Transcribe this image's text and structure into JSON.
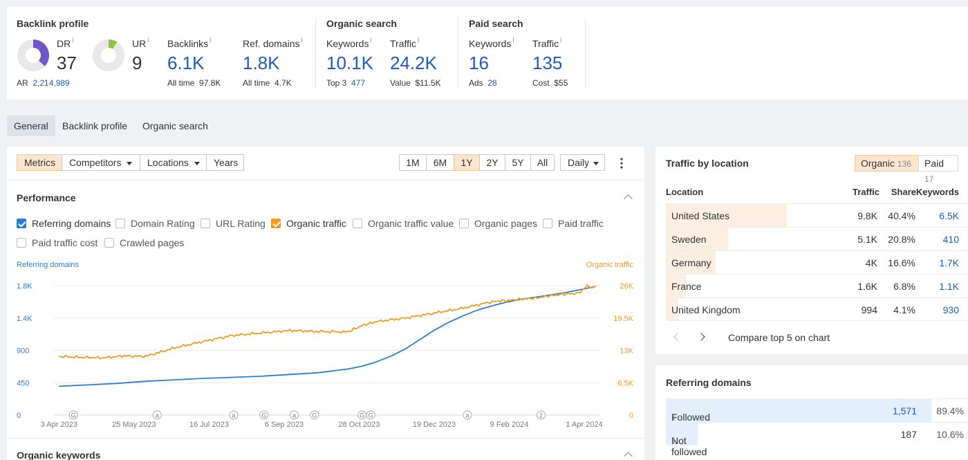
{
  "backlink_profile": {
    "title": "Backlink profile",
    "dr": {
      "label": "DR",
      "value": "37",
      "fraction": 0.37
    },
    "ur": {
      "label": "UR",
      "value": "9",
      "fraction": 0.09
    },
    "ar": {
      "label": "AR",
      "value": "2,214,989"
    },
    "backlinks": {
      "label": "Backlinks",
      "value": "6.1K",
      "sub_label": "All time",
      "sub_value": "97.8K"
    },
    "ref_domains": {
      "label": "Ref. domains",
      "value": "1.8K",
      "sub_label": "All time",
      "sub_value": "4.7K"
    }
  },
  "organic_search": {
    "title": "Organic search",
    "keywords": {
      "label": "Keywords",
      "value": "10.1K",
      "sub_label": "Top 3",
      "sub_value": "477"
    },
    "traffic": {
      "label": "Traffic",
      "value": "24.2K",
      "sub_label": "Value",
      "sub_value": "$11.5K"
    }
  },
  "paid_search": {
    "title": "Paid search",
    "keywords": {
      "label": "Keywords",
      "value": "16",
      "sub_label": "Ads",
      "sub_value": "28"
    },
    "traffic": {
      "label": "Traffic",
      "value": "135",
      "sub_label": "Cost",
      "sub_value": "$55"
    }
  },
  "info_mark": "i",
  "tabs": [
    "General",
    "Backlink profile",
    "Organic search"
  ],
  "toolbar": {
    "metrics": "Metrics",
    "competitors": "Competitors",
    "locations": "Locations",
    "years": "Years",
    "ranges": [
      "1M",
      "6M",
      "1Y",
      "2Y",
      "5Y",
      "All"
    ],
    "active_range": "1Y",
    "interval": "Daily"
  },
  "performance": {
    "title": "Performance",
    "checkboxes": [
      {
        "label": "Referring domains",
        "checked": true
      },
      {
        "label": "Domain Rating",
        "checked": false
      },
      {
        "label": "URL Rating",
        "checked": false
      },
      {
        "label": "Organic traffic",
        "checked": true
      },
      {
        "label": "Organic traffic value",
        "checked": false
      },
      {
        "label": "Organic pages",
        "checked": false
      },
      {
        "label": "Paid traffic",
        "checked": false
      },
      {
        "label": "Paid traffic cost",
        "checked": false
      },
      {
        "label": "Crawled pages",
        "checked": false
      }
    ]
  },
  "chart_data": {
    "type": "line",
    "left_axis_label": "Referring domains",
    "right_axis_label": "Organic traffic",
    "left_ticks": [
      "0",
      "450",
      "900",
      "1.4K",
      "1.8K"
    ],
    "right_ticks": [
      "0",
      "6.5K",
      "13K",
      "19.5K",
      "26K"
    ],
    "left_ylim": [
      0,
      1800
    ],
    "right_ylim": [
      0,
      26000
    ],
    "x_ticks": [
      "3 Apr 2023",
      "25 May 2023",
      "16 Jul 2023",
      "6 Sep 2023",
      "28 Oct 2023",
      "19 Dec 2023",
      "9 Feb 2024",
      "1 Apr 2024"
    ],
    "x_tick_days": [
      0,
      52,
      104,
      156,
      208,
      260,
      312,
      364
    ],
    "x_range_days": [
      -4,
      375
    ],
    "annotations": [
      "G",
      "a",
      "a",
      "G",
      "a",
      "G",
      "G",
      "G",
      "a",
      "2"
    ],
    "annotation_days": [
      10,
      68,
      121,
      142,
      163,
      177,
      210,
      216,
      283,
      334
    ],
    "series": [
      {
        "name": "Referring domains",
        "color": "#2b7cd3",
        "x": [
          0,
          20,
          40,
          60,
          80,
          100,
          120,
          140,
          160,
          180,
          200,
          210,
          220,
          230,
          240,
          250,
          260,
          270,
          280,
          290,
          300,
          310,
          320,
          330,
          340,
          350,
          360,
          372
        ],
        "y": [
          400,
          420,
          440,
          470,
          490,
          510,
          525,
          540,
          565,
          590,
          640,
          680,
          740,
          820,
          920,
          1050,
          1180,
          1290,
          1380,
          1460,
          1520,
          1570,
          1610,
          1640,
          1670,
          1700,
          1740,
          1790
        ]
      },
      {
        "name": "Organic traffic",
        "color": "#f39a1e",
        "x": [
          0,
          15,
          30,
          45,
          60,
          80,
          100,
          120,
          140,
          160,
          180,
          200,
          210,
          220,
          240,
          260,
          280,
          300,
          310,
          320,
          330,
          340,
          350,
          360,
          366,
          368,
          372
        ],
        "y": [
          11800,
          11600,
          11500,
          11900,
          11800,
          13500,
          14800,
          16000,
          16500,
          17000,
          16800,
          16700,
          18000,
          18800,
          19500,
          20500,
          21500,
          22800,
          23000,
          23300,
          23500,
          24000,
          24300,
          24500,
          26000,
          25600,
          25800
        ]
      }
    ]
  },
  "organic_keywords": {
    "title": "Organic keywords"
  },
  "traffic_by_location": {
    "title": "Traffic by location",
    "organic": {
      "label": "Organic",
      "count": "136"
    },
    "paid": {
      "label": "Paid",
      "count": "17"
    },
    "columns": [
      "Location",
      "Traffic",
      "Share",
      "Keywords"
    ],
    "rows": [
      {
        "location": "United States",
        "traffic": "9.8K",
        "share": "40.4%",
        "keywords": "6.5K",
        "share_value": 0.404
      },
      {
        "location": "Sweden",
        "traffic": "5.1K",
        "share": "20.8%",
        "keywords": "410",
        "share_value": 0.208
      },
      {
        "location": "Germany",
        "traffic": "4K",
        "share": "16.6%",
        "keywords": "1.7K",
        "share_value": 0.166
      },
      {
        "location": "France",
        "traffic": "1.6K",
        "share": "6.8%",
        "keywords": "1.1K",
        "share_value": 0.068
      },
      {
        "location": "United Kingdom",
        "traffic": "994",
        "share": "4.1%",
        "keywords": "930",
        "share_value": 0.041
      }
    ],
    "compare_label": "Compare top 5 on chart"
  },
  "referring_domains": {
    "title": "Referring domains",
    "rows": [
      {
        "label": "Followed",
        "value": "1,571",
        "percent": "89.4%",
        "share_value": 0.894
      },
      {
        "label": "Not followed",
        "value": "187",
        "percent": "10.6%",
        "share_value": 0.106
      }
    ]
  }
}
